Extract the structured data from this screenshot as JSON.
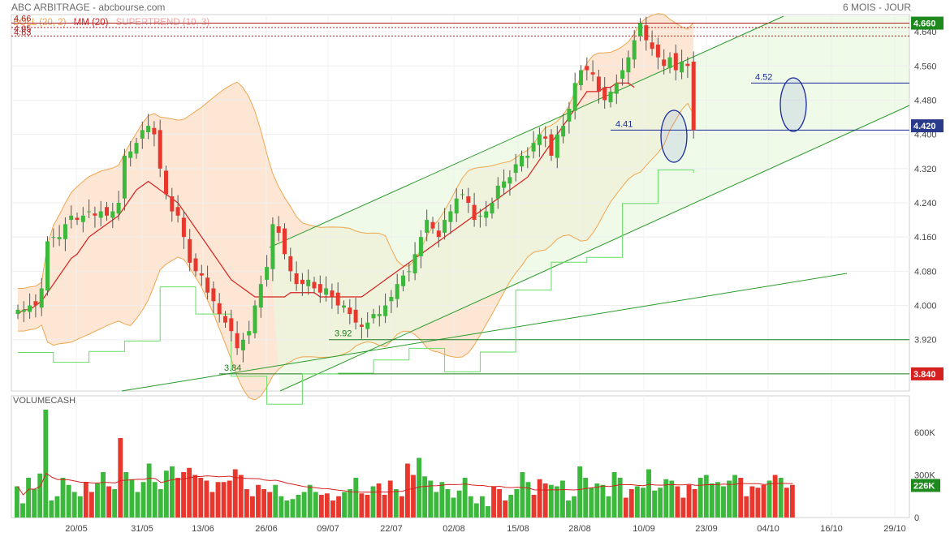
{
  "header": {
    "title": "ABC ARBITRAGE - abcbourse.com",
    "period": "6 MOIS - JOUR"
  },
  "legend": [
    {
      "label": "BOLL (20, 2)",
      "color": "#f0a650"
    },
    {
      "label": "MM (20)",
      "color": "#d62020"
    },
    {
      "label": "SUPERTREND (10, 3)",
      "color": "#f0a0a0"
    }
  ],
  "colors": {
    "up": "#3cb83c",
    "down": "#e8382e",
    "boll_band": "#f0a650",
    "boll_fill": "#fde3cc",
    "ma": "#d62020",
    "supertrend_up": "#66dd66",
    "channel": "#2a9a2a",
    "channel_fill": "#e8f8e0",
    "blue": "#1a2a9a",
    "price_tag": "#1e8a1e",
    "support_tag": "#d62020"
  },
  "chart_data": [
    {
      "type": "candlestick",
      "title": "ABC ARBITRAGE",
      "y_ticks": [
        3.92,
        4.0,
        4.08,
        4.16,
        4.24,
        4.32,
        4.4,
        4.48,
        4.56,
        4.64
      ],
      "y_tick_labels": [
        "3.920",
        "4.000",
        "4.080",
        "4.160",
        "4.240",
        "4.320",
        "4.400",
        "4.480",
        "4.560",
        "4.640"
      ],
      "x_labels": [
        "20/05",
        "31/05",
        "13/06",
        "26/06",
        "09/07",
        "22/07",
        "02/08",
        "15/08",
        "28/08",
        "10/09",
        "23/09",
        "04/10",
        "16/10",
        "29/10"
      ],
      "last_price_label": "4.660",
      "current_price_label": "4.420",
      "support_price_label": "3.840",
      "annotations": {
        "resistance": [
          "4.66",
          "4.65",
          "4.63"
        ],
        "levels": [
          "4.52",
          "4.41",
          "3.92",
          "3.84"
        ]
      },
      "closes": [
        3.99,
        3.99,
        4.0,
        4.0,
        4.04,
        4.15,
        4.16,
        4.16,
        4.19,
        4.21,
        4.2,
        4.21,
        4.22,
        4.21,
        4.22,
        4.21,
        4.22,
        4.24,
        4.35,
        4.36,
        4.38,
        4.41,
        4.42,
        4.4,
        4.32,
        4.26,
        4.22,
        4.21,
        4.16,
        4.1,
        4.08,
        4.07,
        4.03,
        4.01,
        3.98,
        3.96,
        3.94,
        3.9,
        3.92,
        3.94,
        4.0,
        4.05,
        4.09,
        4.19,
        4.17,
        4.12,
        4.08,
        4.05,
        4.05,
        4.06,
        4.04,
        4.03,
        4.04,
        4.02,
        4.0,
        4.0,
        3.98,
        3.96,
        3.95,
        3.96,
        3.98,
        3.98,
        4.0,
        4.02,
        4.05,
        4.07,
        4.08,
        4.12,
        4.16,
        4.2,
        4.18,
        4.16,
        4.2,
        4.22,
        4.25,
        4.26,
        4.24,
        4.2,
        4.21,
        4.22,
        4.24,
        4.28,
        4.29,
        4.3,
        4.33,
        4.35,
        4.35,
        4.38,
        4.4,
        4.39,
        4.35,
        4.4,
        4.42,
        4.46,
        4.52,
        4.55,
        4.55,
        4.54,
        4.5,
        4.48,
        4.5,
        4.52,
        4.55,
        4.58,
        4.62,
        4.66,
        4.62,
        4.6,
        4.58,
        4.56,
        4.58,
        4.55,
        4.57,
        4.56,
        4.41
      ],
      "ma20": [
        3.98,
        3.99,
        3.99,
        4.0,
        4.01,
        4.03,
        4.05,
        4.07,
        4.09,
        4.11,
        4.12,
        4.14,
        4.16,
        4.17,
        4.18,
        4.19,
        4.2,
        4.21,
        4.23,
        4.25,
        4.27,
        4.28,
        4.29,
        4.28,
        4.27,
        4.26,
        4.25,
        4.24,
        4.22,
        4.2,
        4.18,
        4.16,
        4.14,
        4.12,
        4.1,
        4.08,
        4.06,
        4.05,
        4.04,
        4.03,
        4.02,
        4.02,
        4.02,
        4.02,
        4.02,
        4.02,
        4.03,
        4.03,
        4.03,
        4.03,
        4.03,
        4.02,
        4.02,
        4.02,
        4.02,
        4.02,
        4.02,
        4.02,
        4.02,
        4.03,
        4.04,
        4.05,
        4.06,
        4.07,
        4.08,
        4.09,
        4.1,
        4.11,
        4.12,
        4.13,
        4.14,
        4.15,
        4.16,
        4.17,
        4.18,
        4.19,
        4.2,
        4.21,
        4.22,
        4.23,
        4.24,
        4.25,
        4.26,
        4.27,
        4.28,
        4.29,
        4.3,
        4.32,
        4.34,
        4.36,
        4.38,
        4.4,
        4.42,
        4.44,
        4.46,
        4.48,
        4.5,
        4.5,
        4.5,
        4.51,
        4.51,
        4.52,
        4.52,
        4.52,
        4.51
      ],
      "volume_title": "VOLUMECASH",
      "volume_ticks": [
        "0",
        "300K",
        "600K"
      ],
      "volume_last_label": "226K",
      "volumes": [
        220,
        100,
        280,
        200,
        310,
        760,
        120,
        150,
        280,
        230,
        180,
        150,
        250,
        180,
        240,
        320,
        220,
        200,
        560,
        320,
        270,
        180,
        250,
        380,
        250,
        200,
        330,
        360,
        280,
        320,
        350,
        300,
        280,
        260,
        180,
        250,
        250,
        260,
        340,
        300,
        200,
        150,
        230,
        200,
        180,
        230,
        150,
        120,
        130,
        160,
        180,
        230,
        180,
        160,
        170,
        120,
        150,
        180,
        200,
        280,
        170,
        160,
        220,
        240,
        160,
        260,
        200,
        150,
        380,
        300,
        420,
        290,
        260,
        180,
        250,
        200,
        140,
        190,
        280,
        150,
        100,
        150,
        80,
        220,
        200,
        120,
        160,
        200,
        320,
        250,
        160,
        270,
        240,
        230,
        220,
        260,
        120,
        150,
        360,
        280,
        210,
        240,
        230,
        150,
        320,
        280,
        140,
        200,
        220,
        210,
        340,
        190,
        210,
        270,
        260,
        220,
        140,
        230,
        200,
        280,
        300,
        240,
        250,
        220,
        260,
        300,
        280,
        150,
        220,
        210,
        230,
        260,
        300,
        280,
        210,
        230
      ]
    }
  ]
}
